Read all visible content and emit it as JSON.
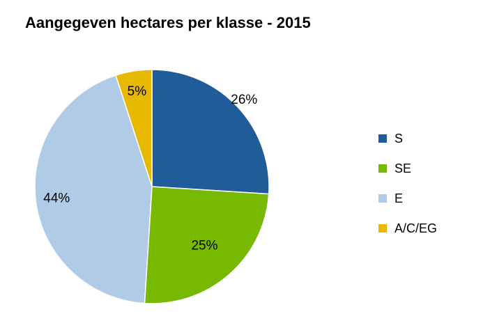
{
  "chart_data": {
    "type": "pie",
    "title": "Aangegeven hectares per klasse - 2015",
    "slices": [
      {
        "label": "S",
        "value": 26,
        "value_label": "26%",
        "color": "#1F5C99"
      },
      {
        "label": "SE",
        "value": 25,
        "value_label": "25%",
        "color": "#76B900"
      },
      {
        "label": "E",
        "value": 44,
        "value_label": "44%",
        "color": "#AFCBE6"
      },
      {
        "label": "A/C/EG",
        "value": 5,
        "value_label": "5%",
        "color": "#E6B800"
      }
    ],
    "legend_position": "right",
    "start_angle": "12 o'clock",
    "direction": "clockwise"
  }
}
